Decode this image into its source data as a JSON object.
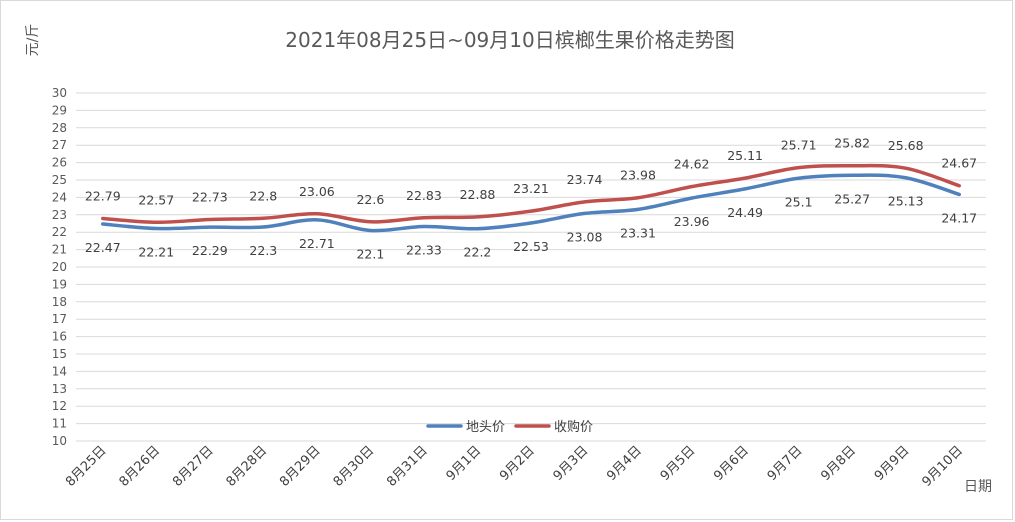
{
  "chart_data": {
    "type": "line",
    "title": "2021年08月25日~09月10日槟榔生果价格走势图",
    "ylabel": "元/斤",
    "xlabel": "日期",
    "ylim": [
      10,
      30
    ],
    "yticks": [
      10,
      11,
      12,
      13,
      14,
      15,
      16,
      17,
      18,
      19,
      20,
      21,
      22,
      23,
      24,
      25,
      26,
      27,
      28,
      29,
      30
    ],
    "grid": true,
    "legend_position": "bottom-center",
    "categories": [
      "8月25日",
      "8月26日",
      "8月27日",
      "8月28日",
      "8月29日",
      "8月30日",
      "8月31日",
      "9月1日",
      "9月2日",
      "9月3日",
      "9月4日",
      "9月5日",
      "9月6日",
      "9月7日",
      "9月8日",
      "9月9日",
      "9月10日"
    ],
    "series": [
      {
        "name": "地头价",
        "color": "#4f81bd",
        "values": [
          22.47,
          22.21,
          22.29,
          22.3,
          22.71,
          22.1,
          22.33,
          22.2,
          22.53,
          23.08,
          23.31,
          23.96,
          24.49,
          25.1,
          25.27,
          25.13,
          24.17
        ],
        "labels": [
          "22.47",
          "22.21",
          "22.29",
          "22.3",
          "22.71",
          "22.1",
          "22.33",
          "22.2",
          "22.53",
          "23.08",
          "23.31",
          "23.96",
          "24.49",
          "25.1",
          "25.27",
          "25.13",
          "24.17"
        ]
      },
      {
        "name": "收购价",
        "color": "#c0504d",
        "values": [
          22.79,
          22.57,
          22.73,
          22.8,
          23.06,
          22.6,
          22.83,
          22.88,
          23.21,
          23.74,
          23.98,
          24.62,
          25.11,
          25.71,
          25.82,
          25.68,
          24.67
        ],
        "labels": [
          "22.79",
          "22.57",
          "22.73",
          "22.8",
          "23.06",
          "22.6",
          "22.83",
          "22.88",
          "23.21",
          "23.74",
          "23.98",
          "24.62",
          "25.11",
          "25.71",
          "25.82",
          "25.68",
          "24.67"
        ]
      }
    ]
  }
}
